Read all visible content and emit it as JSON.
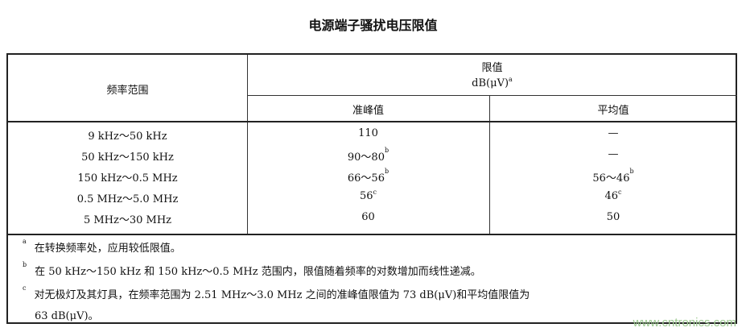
{
  "title": "电源端子骚扰电压限值",
  "table": {
    "header": {
      "col1": "频率范围",
      "limit": "限值",
      "unit": "dB(μV)",
      "unit_note": "a",
      "quasi_peak": "准峰值",
      "average": "平均值"
    },
    "rows": [
      {
        "range": "9 kHz～50 kHz",
        "qp": "110",
        "qp_note": "",
        "avg": "—",
        "avg_note": ""
      },
      {
        "range": "50 kHz～150 kHz",
        "qp": "90～80",
        "qp_note": "b",
        "avg": "—",
        "avg_note": ""
      },
      {
        "range": "150 kHz～0.5 MHz",
        "qp": "66～56",
        "qp_note": "b",
        "avg": "56～46",
        "avg_note": "b"
      },
      {
        "range": "0.5 MHz～5.0 MHz",
        "qp": "56",
        "qp_note": "c",
        "avg": "46",
        "avg_note": "c"
      },
      {
        "range": "5 MHz～30 MHz",
        "qp": "60",
        "qp_note": "",
        "avg": "50",
        "avg_note": ""
      }
    ],
    "footnotes": [
      {
        "mark": "a",
        "text": "在转换频率处，应用较低限值。"
      },
      {
        "mark": "b",
        "text": "在 50 kHz～150 kHz 和 150 kHz～0.5 MHz 范围内，限值随着频率的对数增加而线性递减。"
      },
      {
        "mark": "c",
        "text": "对无极灯及其灯具，在频率范围为 2.51 MHz～3.0 MHz 之间的准峰值限值为 73 dB(μV)和平均值限值为",
        "text2": "63 dB(μV)。"
      }
    ]
  },
  "watermark": "www.cntronics.com"
}
